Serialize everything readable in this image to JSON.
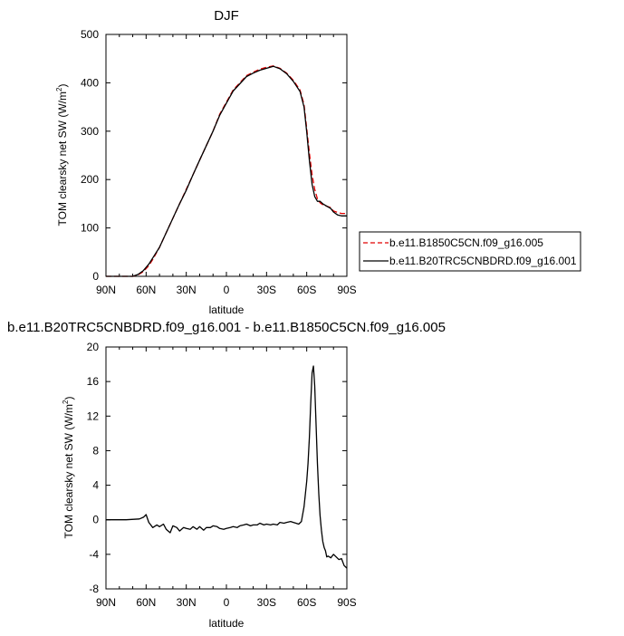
{
  "chart_data": [
    {
      "type": "line",
      "title": "DJF",
      "xlabel": "latitude",
      "ylabel": "TOM clearsky net SW (W/m",
      "ylabel_sup": "2",
      "ylabel_close": ")",
      "xlim": [
        -90,
        90
      ],
      "ylim": [
        0,
        500
      ],
      "xticks": [
        -90,
        -60,
        -30,
        0,
        30,
        60,
        90
      ],
      "xtick_labels": [
        "90N",
        "60N",
        "30N",
        "0",
        "30S",
        "60S",
        "90S"
      ],
      "yticks": [
        0,
        100,
        200,
        300,
        400,
        500
      ],
      "ytick_labels": [
        "0",
        "100",
        "200",
        "300",
        "400",
        "500"
      ],
      "legend": "right",
      "series": [
        {
          "name": "b.e11.B1850C5CN.f09_g16.005",
          "color": "#e00000",
          "dash": "dashed",
          "x": [
            -90,
            -80,
            -75,
            -70,
            -66,
            -62,
            -58,
            -55,
            -50,
            -45,
            -40,
            -35,
            -30,
            -25,
            -20,
            -15,
            -10,
            -5,
            0,
            5,
            10,
            15,
            20,
            25,
            30,
            35,
            40,
            45,
            50,
            55,
            58,
            60,
            62,
            64,
            66,
            68,
            70,
            72,
            75,
            78,
            80,
            83,
            86,
            88,
            90
          ],
          "y": [
            0,
            0,
            0,
            0,
            3,
            10,
            22,
            35,
            60,
            90,
            120,
            150,
            180,
            210,
            240,
            270,
            300,
            335,
            360,
            385,
            400,
            415,
            422,
            428,
            432,
            435,
            430,
            420,
            405,
            385,
            355,
            305,
            255,
            210,
            180,
            160,
            152,
            148,
            145,
            142,
            135,
            132,
            130,
            130,
            130
          ]
        },
        {
          "name": "b.e11.B20TRC5CNBDRD.f09_g16.001",
          "color": "#000000",
          "dash": "solid",
          "x": [
            -90,
            -80,
            -75,
            -70,
            -66,
            -62,
            -58,
            -55,
            -50,
            -45,
            -40,
            -35,
            -30,
            -25,
            -20,
            -15,
            -10,
            -5,
            0,
            5,
            10,
            15,
            20,
            25,
            30,
            35,
            40,
            45,
            50,
            55,
            58,
            60,
            62,
            64,
            66,
            68,
            70,
            72,
            75,
            78,
            80,
            83,
            86,
            88,
            90
          ],
          "y": [
            0,
            0,
            0,
            0,
            4,
            12,
            25,
            38,
            60,
            90,
            120,
            150,
            178,
            210,
            240,
            270,
            300,
            333,
            358,
            383,
            398,
            413,
            420,
            426,
            430,
            434,
            429,
            419,
            403,
            382,
            350,
            298,
            240,
            190,
            165,
            155,
            155,
            150,
            145,
            140,
            133,
            127,
            125,
            125,
            125
          ]
        }
      ]
    },
    {
      "type": "line",
      "title": "b.e11.B20TRC5CNBDRD.f09_g16.001 - b.e11.B1850C5CN.f09_g16.005",
      "xlabel": "latitude",
      "ylabel": "TOM clearsky net SW (W/m",
      "ylabel_sup": "2",
      "ylabel_close": ")",
      "xlim": [
        -90,
        90
      ],
      "ylim": [
        -8,
        20
      ],
      "xticks": [
        -90,
        -60,
        -30,
        0,
        30,
        60,
        90
      ],
      "xtick_labels": [
        "90N",
        "60N",
        "30N",
        "0",
        "30S",
        "60S",
        "90S"
      ],
      "yticks": [
        -8,
        -4,
        0,
        4,
        8,
        12,
        16,
        20
      ],
      "ytick_labels": [
        "-8",
        "-4",
        "0",
        "4",
        "8",
        "12",
        "16",
        "20"
      ],
      "series": [
        {
          "name": "",
          "color": "#000000",
          "dash": "solid",
          "x": [
            -90,
            -75,
            -65,
            -62,
            -60,
            -58,
            -55,
            -52,
            -50,
            -47,
            -45,
            -42,
            -40,
            -37,
            -35,
            -32,
            -30,
            -27,
            -25,
            -22,
            -20,
            -17,
            -15,
            -12,
            -10,
            -7,
            -5,
            -2,
            0,
            3,
            5,
            8,
            10,
            13,
            15,
            18,
            20,
            23,
            25,
            28,
            30,
            33,
            35,
            38,
            40,
            43,
            45,
            48,
            50,
            52,
            54,
            56,
            58,
            60,
            61,
            62,
            63,
            64,
            65,
            66,
            67,
            68,
            69,
            70,
            71,
            72,
            73,
            74,
            75,
            76,
            78,
            80,
            82,
            84,
            86,
            88,
            90
          ],
          "y": [
            0,
            0,
            0.1,
            0.3,
            0.6,
            -0.3,
            -0.9,
            -0.6,
            -0.8,
            -0.5,
            -1.1,
            -1.5,
            -0.7,
            -0.9,
            -1.3,
            -0.9,
            -1.0,
            -1.1,
            -0.8,
            -1.1,
            -0.8,
            -1.2,
            -0.9,
            -0.9,
            -0.7,
            -0.8,
            -1.0,
            -1.1,
            -1.0,
            -0.9,
            -0.8,
            -0.9,
            -0.7,
            -0.6,
            -0.5,
            -0.7,
            -0.6,
            -0.6,
            -0.4,
            -0.6,
            -0.5,
            -0.6,
            -0.5,
            -0.6,
            -0.3,
            -0.4,
            -0.3,
            -0.2,
            -0.3,
            -0.4,
            -0.5,
            -0.2,
            1.5,
            4.5,
            6.5,
            9.5,
            13.5,
            17.0,
            17.8,
            15.5,
            11.0,
            6.5,
            3.0,
            0.5,
            -1.2,
            -2.5,
            -3.2,
            -3.6,
            -4.3,
            -4.2,
            -4.4,
            -4.0,
            -4.3,
            -4.6,
            -4.5,
            -5.3,
            -5.6
          ]
        }
      ]
    }
  ]
}
